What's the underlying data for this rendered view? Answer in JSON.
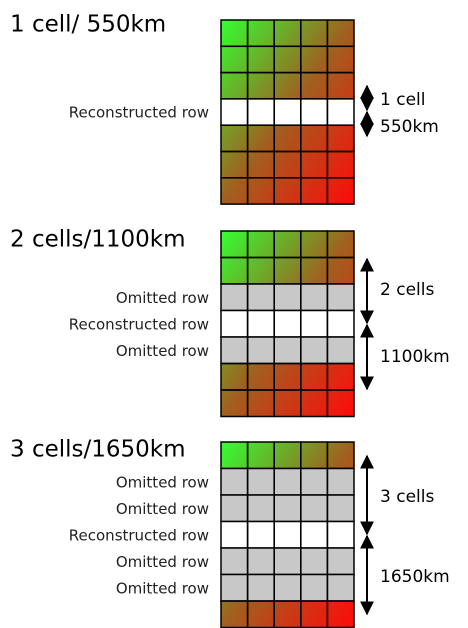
{
  "panels": [
    {
      "title": "1 cell/ 550km",
      "rows": [
        {
          "kind": "data"
        },
        {
          "kind": "data"
        },
        {
          "kind": "data"
        },
        {
          "kind": "reconstructed",
          "label": "Reconstructed row"
        },
        {
          "kind": "data"
        },
        {
          "kind": "data"
        },
        {
          "kind": "data"
        }
      ],
      "arrow_labels": [
        "1 cell",
        "550km"
      ]
    },
    {
      "title": "2 cells/1100km",
      "rows": [
        {
          "kind": "data"
        },
        {
          "kind": "data"
        },
        {
          "kind": "omitted",
          "label": "Omitted row"
        },
        {
          "kind": "reconstructed",
          "label": "Reconstructed row"
        },
        {
          "kind": "omitted",
          "label": "Omitted row"
        },
        {
          "kind": "data"
        },
        {
          "kind": "data"
        }
      ],
      "arrow_labels": [
        "2 cells",
        "1100km"
      ]
    },
    {
      "title": "3 cells/1650km",
      "rows": [
        {
          "kind": "data"
        },
        {
          "kind": "omitted",
          "label": "Omitted row"
        },
        {
          "kind": "omitted",
          "label": "Omitted row"
        },
        {
          "kind": "reconstructed",
          "label": "Reconstructed row"
        },
        {
          "kind": "omitted",
          "label": "Omitted row"
        },
        {
          "kind": "omitted",
          "label": "Omitted row"
        },
        {
          "kind": "data"
        }
      ],
      "arrow_labels": [
        "3 cells",
        "1650km"
      ]
    }
  ]
}
